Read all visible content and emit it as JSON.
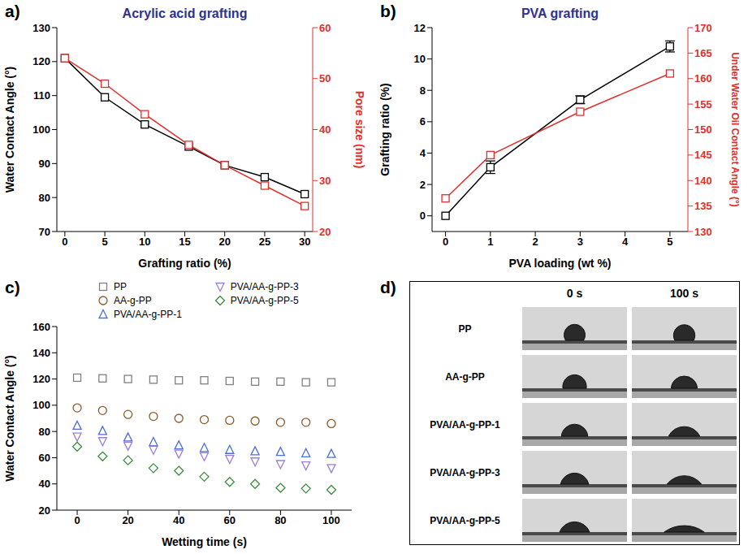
{
  "chart_data": [
    {
      "panel": "a)",
      "type": "line",
      "title": "Acrylic acid grafting",
      "x_label": "Grafting ratio (%)",
      "y_label": "Water Contact Angle (°)",
      "y2_label": "Pore size (nm)",
      "x": [
        0,
        5,
        10,
        15.5,
        20,
        25,
        30
      ],
      "xlim": [
        -1,
        31
      ],
      "xticks": [
        0,
        5,
        10,
        15,
        20,
        25,
        30
      ],
      "ylim": [
        70,
        130
      ],
      "yticks": [
        70,
        80,
        90,
        100,
        110,
        120,
        130
      ],
      "y2lim": [
        20,
        60
      ],
      "y2ticks": [
        20,
        30,
        40,
        50,
        60
      ],
      "series": [
        {
          "color": "#000000",
          "marker": "square",
          "values": [
            121,
            109.5,
            101.5,
            95,
            89.5,
            86,
            81
          ]
        },
        {
          "color": "#e0302e",
          "marker": "square",
          "axis": "y2",
          "values": [
            54,
            49,
            43,
            37,
            33,
            29,
            25
          ]
        }
      ]
    },
    {
      "panel": "b)",
      "type": "line",
      "title": "PVA grafting",
      "x_label": "PVA loading (wt %)",
      "y_label": "Grafting ratio (%)",
      "y2_label": "Under Water Oil Contact Angle (°)",
      "x": [
        0,
        1,
        3,
        5
      ],
      "xlim": [
        -0.3,
        5.4
      ],
      "xticks": [
        0,
        1,
        2,
        3,
        4,
        5
      ],
      "ylim": [
        -1,
        12
      ],
      "yticks": [
        0,
        2,
        4,
        6,
        8,
        10,
        12
      ],
      "y2lim": [
        130,
        170
      ],
      "y2ticks": [
        130,
        135,
        140,
        145,
        150,
        155,
        160,
        165,
        170
      ],
      "series": [
        {
          "color": "#000000",
          "marker": "square",
          "values": [
            0,
            3.1,
            7.4,
            10.8
          ],
          "errors": [
            0,
            0.4,
            0.25,
            0.35
          ]
        },
        {
          "color": "#e0302e",
          "marker": "square",
          "axis": "y2",
          "values": [
            136.5,
            145,
            153.5,
            161
          ]
        }
      ]
    },
    {
      "panel": "c)",
      "type": "scatter",
      "x_label": "Wetting time (s)",
      "y_label": "Water Contact Angle (°)",
      "legend": "top",
      "x": [
        0,
        10,
        20,
        30,
        40,
        50,
        60,
        70,
        80,
        90,
        100
      ],
      "xlim": [
        -8,
        108
      ],
      "xticks": [
        0,
        20,
        40,
        60,
        80,
        100
      ],
      "ylim": [
        20,
        160
      ],
      "yticks": [
        20,
        40,
        60,
        80,
        100,
        120,
        140,
        160
      ],
      "series": [
        {
          "name": "PP",
          "color": "#808080",
          "marker": "square",
          "values": [
            121,
            120.5,
            120,
            119.5,
            119,
            119,
            118.5,
            118,
            118,
            117.5,
            117.5
          ]
        },
        {
          "name": "AA-g-PP",
          "color": "#8b5a2b",
          "marker": "circle",
          "values": [
            98,
            96,
            93,
            91.5,
            90,
            89,
            88.5,
            88,
            87,
            87,
            86
          ]
        },
        {
          "name": "PVA/AA-g-PP-1",
          "color": "#4a6fd8",
          "marker": "triangle",
          "values": [
            84.5,
            80.5,
            75.5,
            72,
            69.5,
            67.5,
            66,
            65,
            64.5,
            63.5,
            63
          ]
        },
        {
          "name": "PVA/AA-g-PP-3",
          "color": "#9a7fd8",
          "marker": "triangle-down",
          "values": [
            76,
            72.5,
            69,
            66,
            63,
            61,
            59,
            57,
            55,
            54,
            52
          ]
        },
        {
          "name": "PVA/AA-g-PP-5",
          "color": "#3b8e3b",
          "marker": "diamond",
          "values": [
            68.5,
            61,
            58,
            52,
            50,
            45.5,
            41.5,
            40,
            37,
            36.5,
            35.5
          ]
        }
      ]
    }
  ],
  "figure_d": {
    "panel": "d)",
    "columns": [
      "0 s",
      "100 s"
    ],
    "rows": [
      "PP",
      "AA-g-PP",
      "PVA/AA-g-PP-1",
      "PVA/AA-g-PP-3",
      "PVA/AA-g-PP-5"
    ]
  }
}
